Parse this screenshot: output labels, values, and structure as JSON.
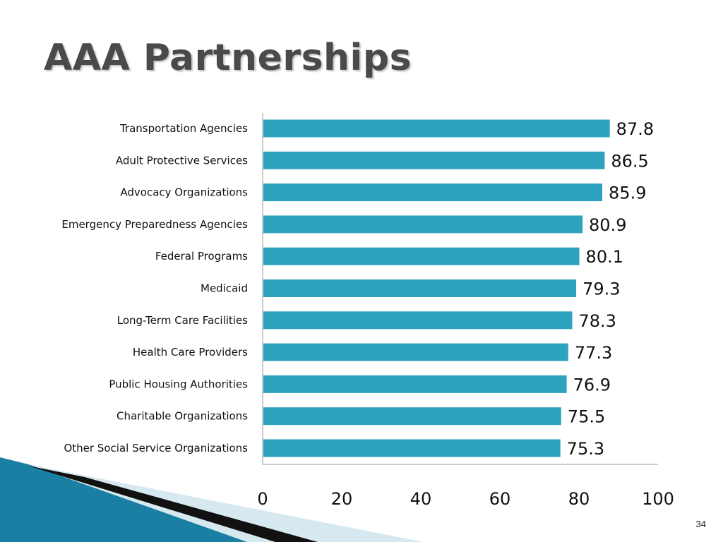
{
  "slide": {
    "title": "AAA Partnerships",
    "page_number": "34"
  },
  "colors": {
    "bar": "#2ea3bf",
    "axis": "#999999",
    "title_text": "#4a4a4a",
    "deco_blue": "#1b7fa3",
    "deco_light": "#d6e8f0",
    "deco_dark": "#111111"
  },
  "chart_data": {
    "type": "bar",
    "orientation": "horizontal",
    "categories": [
      "Transportation Agencies",
      "Adult Protective Services",
      "Advocacy Organizations",
      "Emergency Preparedness Agencies",
      "Federal Programs",
      "Medicaid",
      "Long-Term Care Facilities",
      "Health Care Providers",
      "Public Housing Authorities",
      "Charitable Organizations",
      "Other Social Service Organizations"
    ],
    "values": [
      87.8,
      86.5,
      85.9,
      80.9,
      80.1,
      79.3,
      78.3,
      77.3,
      76.9,
      75.5,
      75.3
    ],
    "value_labels": [
      "87.8",
      "86.5",
      "85.9",
      "80.9",
      "80.1",
      "79.3",
      "78.3",
      "77.3",
      "76.9",
      "75.5",
      "75.3"
    ],
    "xlim": [
      0,
      100
    ],
    "xticks": [
      0,
      20,
      40,
      60,
      80,
      100
    ],
    "xtick_labels": [
      "0",
      "20",
      "40",
      "60",
      "80",
      "100"
    ],
    "grid": false,
    "legend": "none"
  }
}
